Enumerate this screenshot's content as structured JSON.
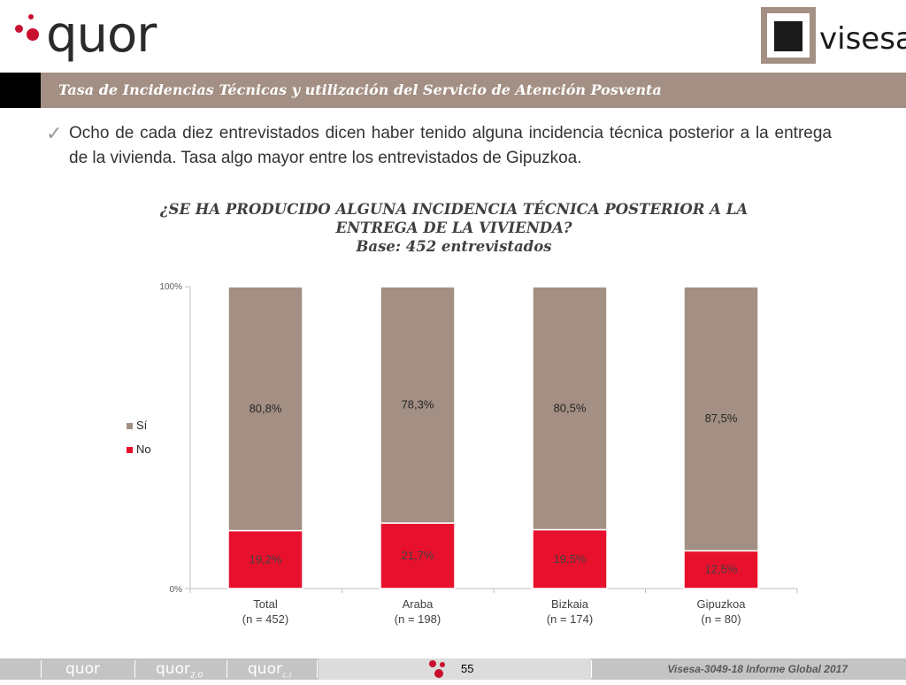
{
  "header": {
    "logo_left": "quor",
    "logo_right": "visesa",
    "title": "Tasa de Incidencias Técnicas y utilización del  Servicio de Atención Posventa"
  },
  "bullet": {
    "text": "Ocho de cada diez entrevistados dicen haber tenido alguna incidencia técnica posterior a la entrega de la vivienda. Tasa algo mayor entre los entrevistados de Gipuzkoa."
  },
  "chart_title": {
    "line1": "¿SE HA PRODUCIDO ALGUNA INCIDENCIA TÉCNICA POSTERIOR A LA",
    "line2": "ENTREGA DE LA VIVIENDA?",
    "line3": "Base: 452 entrevistados"
  },
  "chart_data": {
    "type": "bar",
    "stacked": true,
    "categories": [
      "Total",
      "Araba",
      "Bizkaia",
      "Gipuzkoa"
    ],
    "category_subtitles": [
      "(n = 452)",
      "(n = 198)",
      "(n = 174)",
      "(n = 80)"
    ],
    "series": [
      {
        "name": "No",
        "values": [
          19.2,
          21.7,
          19.5,
          12.5
        ],
        "labels": [
          "19,2%",
          "21,7%",
          "19,5%",
          "12,5%"
        ],
        "color": "#e8112d"
      },
      {
        "name": "Sí",
        "values": [
          80.8,
          78.3,
          80.5,
          87.5
        ],
        "labels": [
          "80,8%",
          "78,3%",
          "80,5%",
          "87,5%"
        ],
        "color": "#a38f83"
      }
    ],
    "legend": [
      "Sí",
      "No"
    ],
    "y_ticks": [
      "0%",
      "100%"
    ],
    "ylim": [
      0,
      100
    ],
    "legend_position": "left",
    "grid": false
  },
  "footer": {
    "brand1": "quor",
    "brand2": "quor",
    "brand2_suffix": "2.0",
    "brand3": "quor",
    "brand3_suffix": "c.i",
    "page_number": "55",
    "report": "Visesa-3049-18  Informe Global 2017"
  },
  "colors": {
    "accent_brown": "#a38f83",
    "accent_red": "#e8112d",
    "brand_red": "#c8102e"
  },
  "icons": {
    "bullet": "checkmark-icon"
  }
}
